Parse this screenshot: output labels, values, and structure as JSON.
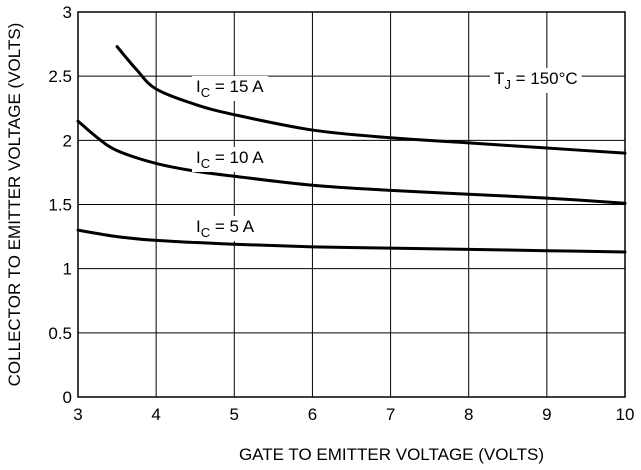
{
  "chart_data": {
    "type": "line",
    "xlabel": "GATE TO EMITTER VOLTAGE (VOLTS)",
    "ylabel": "COLLECTOR TO EMITTER VOLTAGE (VOLTS)",
    "xlim": [
      3,
      10
    ],
    "ylim": [
      0,
      3
    ],
    "xticks": [
      "3",
      "4",
      "5",
      "6",
      "7",
      "8",
      "9",
      "10"
    ],
    "yticks": [
      "0",
      "0.5",
      "1",
      "1.5",
      "2",
      "2.5",
      "3"
    ],
    "grid": true,
    "annotation": {
      "main": "T",
      "sub": "J",
      "rest": " = 150°C"
    },
    "series": [
      {
        "label": {
          "main": "I",
          "sub": "C",
          "rest": " = 15 A"
        },
        "x": [
          3.5,
          3.75,
          4.0,
          4.5,
          5.0,
          6.0,
          7.0,
          8.0,
          9.0,
          10.0
        ],
        "y": [
          2.73,
          2.55,
          2.4,
          2.28,
          2.2,
          2.08,
          2.02,
          1.98,
          1.94,
          1.9
        ]
      },
      {
        "label": {
          "main": "I",
          "sub": "C",
          "rest": " = 10 A"
        },
        "x": [
          3.0,
          3.25,
          3.5,
          4.0,
          4.5,
          5.0,
          6.0,
          7.0,
          8.0,
          9.0,
          10.0
        ],
        "y": [
          2.15,
          2.02,
          1.92,
          1.82,
          1.76,
          1.72,
          1.65,
          1.61,
          1.58,
          1.55,
          1.51
        ]
      },
      {
        "label": {
          "main": "I",
          "sub": "C",
          "rest": " = 5 A"
        },
        "x": [
          3.0,
          3.5,
          4.0,
          5.0,
          6.0,
          7.0,
          8.0,
          9.0,
          10.0
        ],
        "y": [
          1.3,
          1.25,
          1.22,
          1.19,
          1.17,
          1.16,
          1.15,
          1.14,
          1.13
        ]
      }
    ]
  }
}
